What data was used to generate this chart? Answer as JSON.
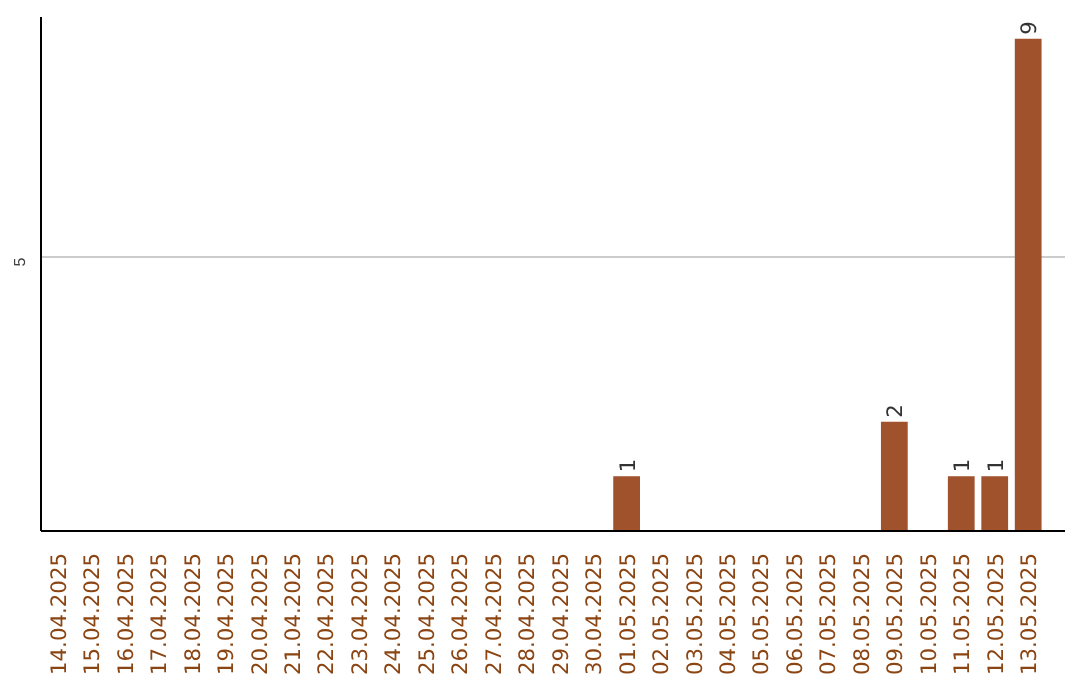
{
  "chart_data": {
    "type": "bar",
    "categories": [
      "14.04.2025",
      "15.04.2025",
      "16.04.2025",
      "17.04.2025",
      "18.04.2025",
      "19.04.2025",
      "20.04.2025",
      "21.04.2025",
      "22.04.2025",
      "23.04.2025",
      "24.04.2025",
      "25.04.2025",
      "26.04.2025",
      "27.04.2025",
      "28.04.2025",
      "29.04.2025",
      "30.04.2025",
      "01.05.2025",
      "02.05.2025",
      "03.05.2025",
      "04.05.2025",
      "05.05.2025",
      "06.05.2025",
      "07.05.2025",
      "08.05.2025",
      "09.05.2025",
      "10.05.2025",
      "11.05.2025",
      "12.05.2025",
      "13.05.2025"
    ],
    "values": [
      null,
      null,
      null,
      null,
      null,
      null,
      null,
      null,
      null,
      null,
      null,
      null,
      null,
      null,
      null,
      null,
      null,
      1,
      null,
      null,
      null,
      null,
      null,
      null,
      null,
      2,
      null,
      1,
      1,
      9
    ],
    "color": "#a0522d",
    "ylim": [
      0,
      9.4
    ],
    "yticks": [
      5
    ],
    "grid": "y",
    "data_labels": true
  }
}
